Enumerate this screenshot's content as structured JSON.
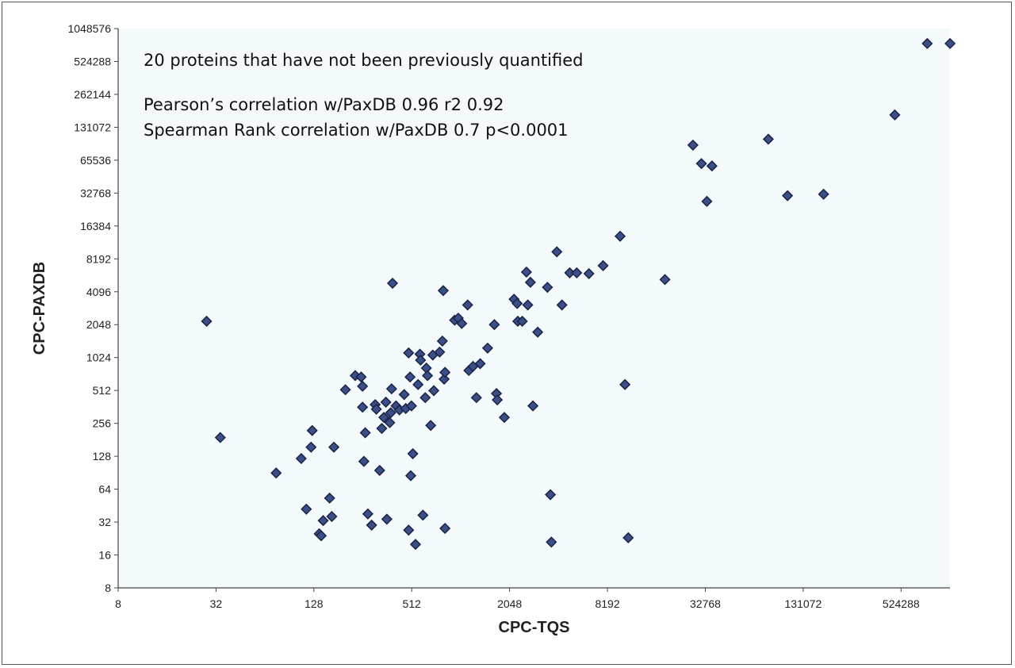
{
  "chart_data": {
    "type": "scatter",
    "title": "",
    "xlabel": "CPC-TQS",
    "ylabel": "CPC-PAXDB",
    "x_scale": "log2",
    "y_scale": "log2",
    "xlim": [
      8,
      1048576
    ],
    "ylim": [
      8,
      1048576
    ],
    "x_ticks": [
      "8",
      "32",
      "128",
      "512",
      "2048",
      "8192",
      "32768",
      "131072",
      "524288"
    ],
    "y_ticks": [
      "8",
      "16",
      "32",
      "64",
      "128",
      "256",
      "512",
      "1024",
      "2048",
      "4096",
      "8192",
      "16384",
      "32768",
      "65536",
      "131072",
      "262144",
      "524288",
      "1048576"
    ],
    "annotations": [
      "20 proteins that have not been previously quantified",
      "Pearson’s correlation w/PaxDB 0.96 r2 0.92",
      "Spearman Rank correlation w/PaxDB 0.7 p<0.0001"
    ],
    "marker_color": "#3b4f86",
    "marker_edge": "#1a2347",
    "grid": false,
    "legend": "none",
    "points": [
      [
        28,
        2200
      ],
      [
        34,
        190
      ],
      [
        75,
        90
      ],
      [
        107,
        122
      ],
      [
        115,
        42
      ],
      [
        123,
        155
      ],
      [
        125,
        220
      ],
      [
        138,
        25
      ],
      [
        142,
        24
      ],
      [
        146,
        33
      ],
      [
        160,
        53
      ],
      [
        165,
        36
      ],
      [
        170,
        155
      ],
      [
        200,
        520
      ],
      [
        230,
        700
      ],
      [
        250,
        680
      ],
      [
        255,
        560
      ],
      [
        255,
        360
      ],
      [
        260,
        115
      ],
      [
        265,
        210
      ],
      [
        275,
        38
      ],
      [
        290,
        30
      ],
      [
        305,
        380
      ],
      [
        310,
        345
      ],
      [
        325,
        95
      ],
      [
        335,
        230
      ],
      [
        345,
        290
      ],
      [
        355,
        400
      ],
      [
        360,
        34
      ],
      [
        375,
        260
      ],
      [
        380,
        320
      ],
      [
        385,
        530
      ],
      [
        390,
        4900
      ],
      [
        410,
        370
      ],
      [
        430,
        340
      ],
      [
        460,
        470
      ],
      [
        470,
        350
      ],
      [
        490,
        1130
      ],
      [
        490,
        27
      ],
      [
        500,
        680
      ],
      [
        505,
        85
      ],
      [
        510,
        370
      ],
      [
        520,
        135
      ],
      [
        540,
        20
      ],
      [
        560,
        580
      ],
      [
        575,
        1100
      ],
      [
        580,
        970
      ],
      [
        600,
        37
      ],
      [
        620,
        440
      ],
      [
        630,
        820
      ],
      [
        640,
        700
      ],
      [
        670,
        245
      ],
      [
        690,
        1080
      ],
      [
        700,
        510
      ],
      [
        760,
        1150
      ],
      [
        790,
        1450
      ],
      [
        800,
        4200
      ],
      [
        810,
        650
      ],
      [
        820,
        750
      ],
      [
        820,
        28
      ],
      [
        940,
        2250
      ],
      [
        990,
        2350
      ],
      [
        1040,
        2100
      ],
      [
        1130,
        3100
      ],
      [
        1150,
        780
      ],
      [
        1220,
        850
      ],
      [
        1280,
        440
      ],
      [
        1350,
        900
      ],
      [
        1500,
        1250
      ],
      [
        1650,
        2050
      ],
      [
        1700,
        480
      ],
      [
        1720,
        420
      ],
      [
        1900,
        290
      ],
      [
        2180,
        3500
      ],
      [
        2280,
        3200
      ],
      [
        2300,
        2200
      ],
      [
        2450,
        2200
      ],
      [
        2600,
        6200
      ],
      [
        2650,
        3100
      ],
      [
        2750,
        5000
      ],
      [
        2850,
        370
      ],
      [
        3050,
        1750
      ],
      [
        3500,
        4500
      ],
      [
        3650,
        57
      ],
      [
        3700,
        21
      ],
      [
        4000,
        9500
      ],
      [
        4300,
        3100
      ],
      [
        4800,
        6100
      ],
      [
        5300,
        6100
      ],
      [
        6300,
        6000
      ],
      [
        7700,
        7100
      ],
      [
        9800,
        13200
      ],
      [
        10500,
        580
      ],
      [
        11000,
        23
      ],
      [
        18500,
        5300
      ],
      [
        27500,
        90000
      ],
      [
        31000,
        61000
      ],
      [
        33500,
        27500
      ],
      [
        36000,
        58000
      ],
      [
        80000,
        102000
      ],
      [
        105000,
        31000
      ],
      [
        175000,
        32000
      ],
      [
        480000,
        170000
      ],
      [
        760000,
        765000
      ],
      [
        1050000,
        765000
      ]
    ]
  }
}
